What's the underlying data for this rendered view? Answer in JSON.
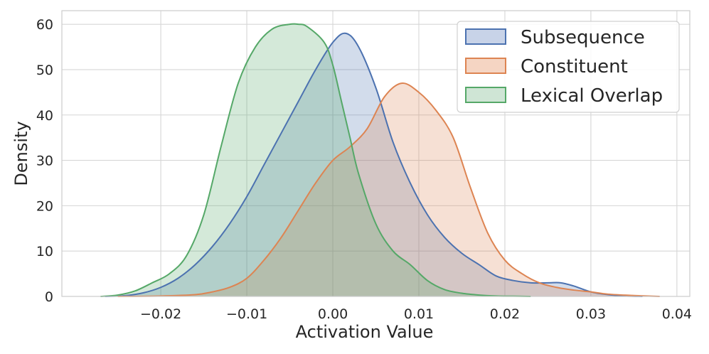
{
  "chart_data": {
    "type": "area",
    "title": "",
    "xlabel": "Activation Value",
    "ylabel": "Density",
    "xlim": [
      -0.0315,
      0.0415
    ],
    "ylim": [
      0,
      63
    ],
    "xticks": [
      -0.02,
      -0.01,
      0.0,
      0.01,
      0.02,
      0.03,
      0.04
    ],
    "xtick_labels": [
      "−0.02",
      "−0.01",
      "0.00",
      "0.01",
      "0.02",
      "0.03",
      "0.04"
    ],
    "yticks": [
      0,
      10,
      20,
      30,
      40,
      50,
      60
    ],
    "ytick_labels": [
      "0",
      "10",
      "20",
      "30",
      "40",
      "50",
      "60"
    ],
    "grid": true,
    "legend_position": "top-right",
    "series": [
      {
        "name": "Subsequence",
        "line_color": "#4c72b0",
        "fill_color": "#c8d3e8",
        "x": [
          -0.0265,
          -0.024,
          -0.022,
          -0.02,
          -0.018,
          -0.016,
          -0.014,
          -0.012,
          -0.01,
          -0.008,
          -0.006,
          -0.004,
          -0.002,
          0.0,
          0.0015,
          0.003,
          0.005,
          0.007,
          0.009,
          0.011,
          0.013,
          0.015,
          0.017,
          0.019,
          0.021,
          0.023,
          0.025,
          0.0265,
          0.028,
          0.03,
          0.032,
          0.034,
          0.036
        ],
        "y": [
          0,
          0.2,
          0.8,
          2,
          4,
          7,
          11,
          16,
          22,
          29,
          36,
          43,
          50,
          56,
          58,
          55,
          46,
          34,
          25,
          18,
          13,
          9.5,
          7,
          4.5,
          3.5,
          3,
          3,
          3,
          2.3,
          1,
          0.4,
          0.1,
          0
        ]
      },
      {
        "name": "Constituent",
        "line_color": "#dd8452",
        "fill_color": "#f5d5c3",
        "x": [
          -0.025,
          -0.02,
          -0.016,
          -0.014,
          -0.012,
          -0.01,
          -0.008,
          -0.006,
          -0.004,
          -0.002,
          0.0,
          0.002,
          0.004,
          0.006,
          0.008,
          0.01,
          0.012,
          0.014,
          0.016,
          0.018,
          0.02,
          0.022,
          0.024,
          0.026,
          0.028,
          0.03,
          0.032,
          0.035,
          0.038
        ],
        "y": [
          0,
          0.1,
          0.4,
          1,
          2,
          4,
          8,
          13,
          19,
          25,
          30,
          33,
          37,
          44,
          47,
          45,
          41,
          35,
          24,
          14,
          8,
          5,
          3,
          2,
          1.4,
          1,
          0.5,
          0.2,
          0
        ]
      },
      {
        "name": "Lexical Overlap",
        "line_color": "#55a868",
        "fill_color": "#cfe5d5",
        "x": [
          -0.027,
          -0.025,
          -0.023,
          -0.021,
          -0.019,
          -0.017,
          -0.015,
          -0.013,
          -0.011,
          -0.009,
          -0.007,
          -0.005,
          -0.004,
          -0.003,
          -0.001,
          0.0,
          0.001,
          0.002,
          0.003,
          0.005,
          0.007,
          0.009,
          0.011,
          0.013,
          0.015,
          0.017,
          0.019,
          0.021,
          0.023
        ],
        "y": [
          0,
          0.3,
          1.2,
          3,
          5,
          9,
          18,
          33,
          47,
          55,
          59,
          60,
          60,
          59.5,
          56,
          51,
          43,
          35,
          27,
          16,
          10,
          7,
          3.5,
          1.5,
          0.7,
          0.3,
          0.1,
          0.05,
          0
        ]
      }
    ]
  }
}
